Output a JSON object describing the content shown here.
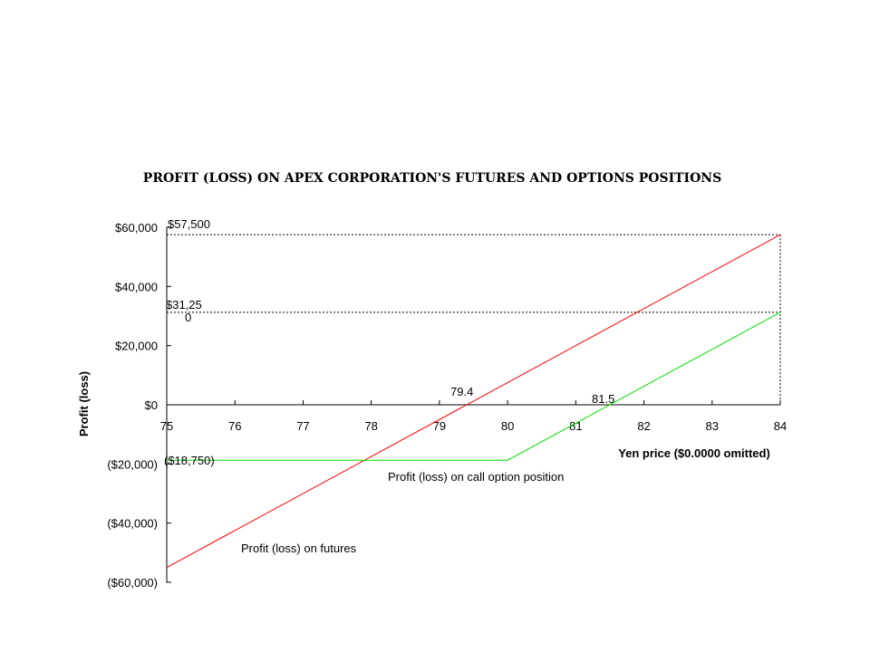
{
  "chart_data": {
    "type": "line",
    "title": "PROFIT (LOSS) ON APEX CORPORATION'S FUTURES AND OPTIONS POSITIONS",
    "xlabel": "Yen price ($0.0000 omitted)",
    "ylabel": "Profit (loss)",
    "xlim": [
      75,
      84
    ],
    "ylim": [
      -60000,
      60000
    ],
    "x_ticks": [
      75,
      76,
      77,
      78,
      79,
      80,
      81,
      82,
      83,
      84
    ],
    "x_tick_labels": [
      "75",
      "76",
      "77",
      "78",
      "79",
      "80",
      "81",
      "82",
      "83",
      "84"
    ],
    "y_ticks": [
      60000,
      40000,
      20000,
      0,
      -20000,
      -40000,
      -60000
    ],
    "y_tick_labels": [
      "$60,000",
      "$40,000",
      "$20,000",
      "$0",
      "($20,000)",
      "($40,000)",
      "($60,000)"
    ],
    "series": [
      {
        "name": "Profit (loss) on futures",
        "color": "#ff0000",
        "x": [
          75,
          84
        ],
        "y": [
          -55000,
          57500
        ]
      },
      {
        "name": "Profit (loss) on call option position",
        "color": "#00e000",
        "x": [
          75,
          80,
          84
        ],
        "y": [
          -18750,
          -18750,
          31250
        ]
      }
    ],
    "reference_lines": [
      {
        "y": 57500,
        "label": "$57,500"
      },
      {
        "y": 31250,
        "label_line1": "$31,25",
        "label_line2": "0"
      }
    ],
    "annotations": {
      "breakeven_futures": "79.4",
      "breakeven_option": "81.5",
      "option_floor": "($18,750)"
    },
    "grid": false
  }
}
